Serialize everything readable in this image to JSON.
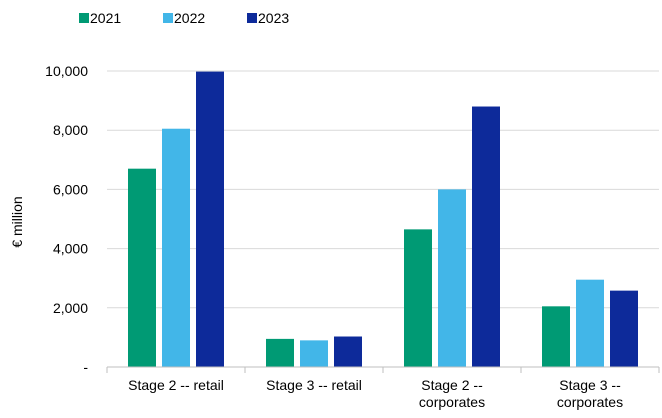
{
  "chart_data": {
    "type": "bar",
    "categories": [
      [
        "Stage 2 -- retail"
      ],
      [
        "Stage 3 -- retail"
      ],
      [
        "Stage 2 --",
        "corporates"
      ],
      [
        "Stage 3 --",
        "corporates"
      ]
    ],
    "series": [
      {
        "name": "2021",
        "color": "#009a74",
        "values": [
          6700,
          950,
          4650,
          2050
        ]
      },
      {
        "name": "2022",
        "color": "#42b6e8",
        "values": [
          8050,
          900,
          6000,
          2950
        ]
      },
      {
        "name": "2023",
        "color": "#0d2a9a",
        "values": [
          9980,
          1030,
          8800,
          2580
        ]
      }
    ],
    "ylabel": "€ million",
    "ylim": [
      0,
      10000
    ],
    "yticks": [
      0,
      2000,
      4000,
      6000,
      8000,
      10000
    ],
    "ytick_labels": [
      "-",
      "2,000",
      "4,000",
      "6,000",
      "8,000",
      "10,000"
    ],
    "grid": true,
    "legend_position": "top-left"
  }
}
